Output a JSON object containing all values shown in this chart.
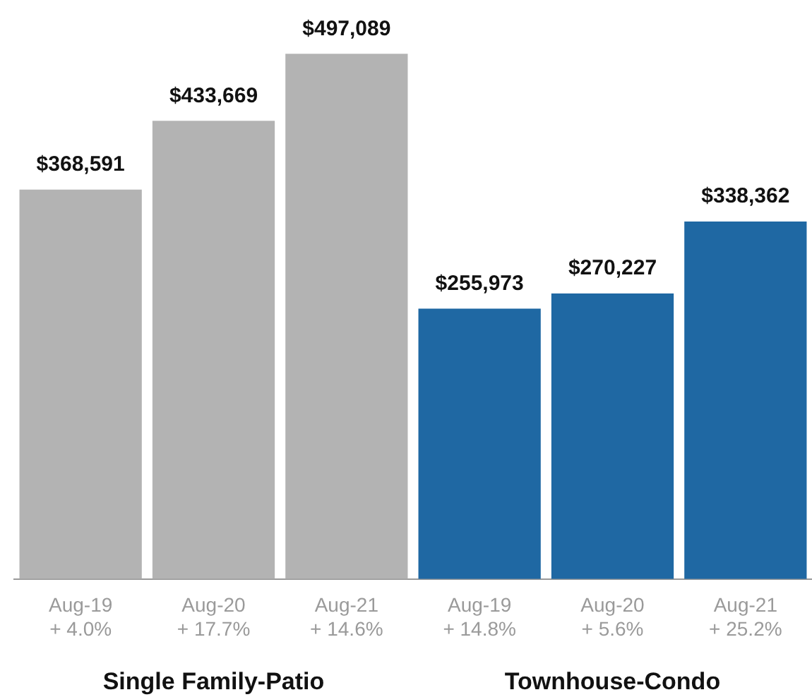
{
  "chart_data": {
    "type": "bar",
    "categories": [
      "Aug-19\n+ 4.0%",
      "Aug-20\n+ 17.7%",
      "Aug-21\n+ 14.6%",
      "Aug-19\n+ 14.8%",
      "Aug-20\n+ 5.6%",
      "Aug-21\n+ 25.2%"
    ],
    "values": [
      368591,
      433669,
      497089,
      255973,
      270227,
      338362
    ],
    "colors": [
      "#b3b3b3",
      "#b3b3b3",
      "#b3b3b3",
      "#1f68a3",
      "#1f68a3",
      "#1f68a3"
    ],
    "value_labels": [
      "$368,591",
      "$433,669",
      "$497,089",
      "$255,973",
      "$270,227",
      "$338,362"
    ],
    "annotations": [
      "Single Family-Patio",
      "Townhouse-Condo"
    ],
    "grid": false,
    "legend": false
  }
}
